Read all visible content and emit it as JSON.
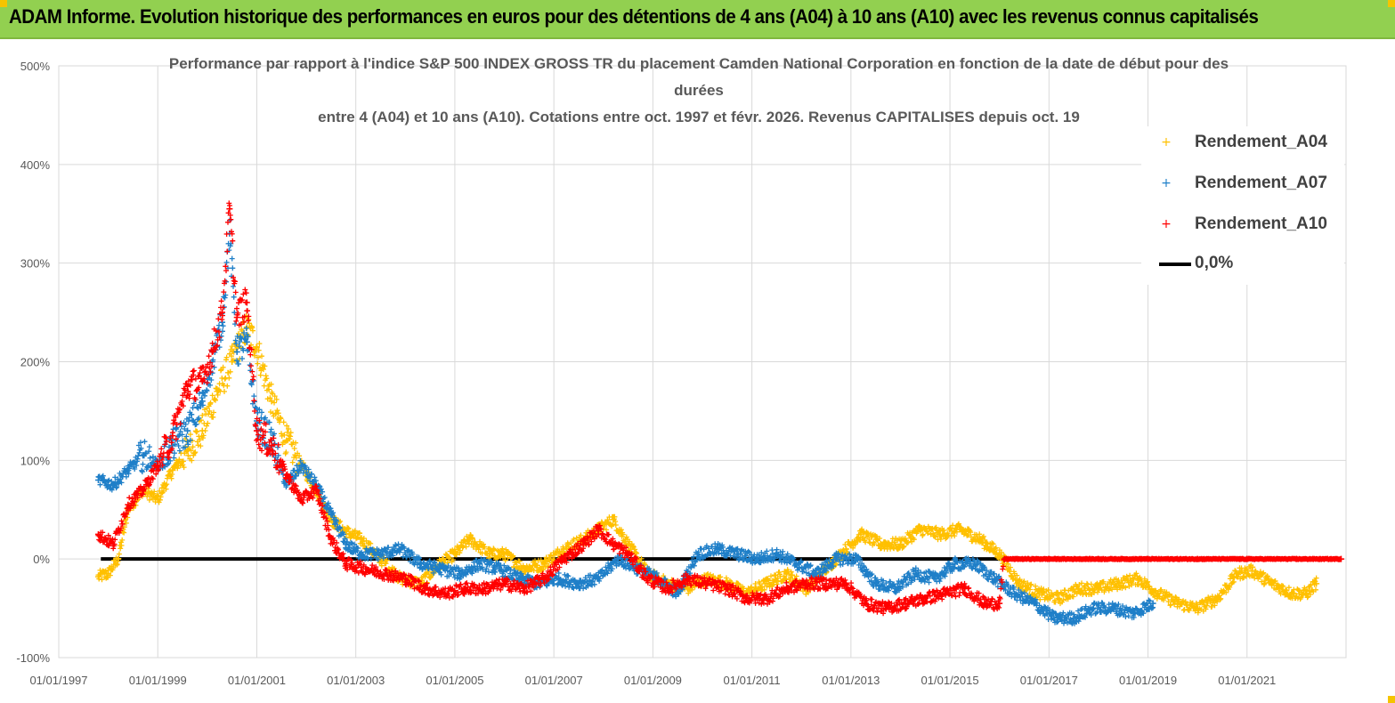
{
  "banner": {
    "title": "ADAM Informe. Evolution historique des performances en euros pour des détentions de 4 ans (A04) à 10 ans (A10) avec les revenus connus capitalisés"
  },
  "colors": {
    "banner": "#92d050",
    "A04": "#ffc000",
    "A07": "#1f7fc8",
    "A10": "#ff0000",
    "zero_line": "#000000",
    "grid": "#d9d9d9"
  },
  "chart_data": {
    "type": "scatter",
    "title_lines": [
      "Performance par rapport à l'indice S&P 500 INDEX GROSS TR  du placement Camden National Corporation en fonction de la date de début pour des",
      "durées",
      "entre 4 (A04) et 10 ans (A10). Cotations entre oct. 1997 et févr. 2026. Revenus CAPITALISES depuis oct. 19"
    ],
    "y_ticks": [
      "500%",
      "400%",
      "300%",
      "200%",
      "100%",
      "0%",
      "-100%"
    ],
    "y_tick_values": [
      500,
      400,
      300,
      200,
      100,
      0,
      -100
    ],
    "ylim": [
      -100,
      500
    ],
    "x_ticks": [
      "01/01/1997",
      "01/01/1999",
      "01/01/2001",
      "01/01/2003",
      "01/01/2005",
      "01/01/2007",
      "01/01/2009",
      "01/01/2011",
      "01/01/2013",
      "01/01/2015",
      "01/01/2017",
      "01/01/2019",
      "01/01/2021"
    ],
    "x_tick_years": [
      1997,
      1999,
      2001,
      2003,
      2005,
      2007,
      2009,
      2011,
      2013,
      2015,
      2017,
      2019,
      2021
    ],
    "xlim": [
      1997,
      2023
    ],
    "legend_position": "top-right",
    "series": [
      {
        "name": "Rendement_A04",
        "points": [
          [
            1997.8,
            -18
          ],
          [
            1998.0,
            -15
          ],
          [
            1998.2,
            0
          ],
          [
            1998.4,
            50
          ],
          [
            1998.7,
            70
          ],
          [
            1999.0,
            60
          ],
          [
            1999.3,
            90
          ],
          [
            1999.6,
            110
          ],
          [
            1999.9,
            130
          ],
          [
            2000.2,
            170
          ],
          [
            2000.5,
            200
          ],
          [
            2000.8,
            235
          ],
          [
            2001.0,
            215
          ],
          [
            2001.3,
            160
          ],
          [
            2001.6,
            120
          ],
          [
            2001.9,
            95
          ],
          [
            2002.2,
            70
          ],
          [
            2002.5,
            40
          ],
          [
            2002.8,
            28
          ],
          [
            2003.1,
            20
          ],
          [
            2003.5,
            0
          ],
          [
            2003.9,
            -20
          ],
          [
            2004.3,
            -25
          ],
          [
            2004.7,
            -5
          ],
          [
            2005.0,
            5
          ],
          [
            2005.3,
            20
          ],
          [
            2005.7,
            5
          ],
          [
            2006.0,
            5
          ],
          [
            2006.4,
            -10
          ],
          [
            2006.8,
            -5
          ],
          [
            2007.2,
            10
          ],
          [
            2007.6,
            20
          ],
          [
            2007.9,
            30
          ],
          [
            2008.2,
            40
          ],
          [
            2008.5,
            15
          ],
          [
            2008.9,
            -15
          ],
          [
            2009.3,
            -25
          ],
          [
            2009.7,
            -30
          ],
          [
            2010.1,
            -20
          ],
          [
            2010.5,
            -25
          ],
          [
            2010.9,
            -35
          ],
          [
            2011.3,
            -25
          ],
          [
            2011.7,
            -15
          ],
          [
            2012.1,
            -30
          ],
          [
            2012.5,
            -10
          ],
          [
            2012.9,
            10
          ],
          [
            2013.2,
            25
          ],
          [
            2013.6,
            15
          ],
          [
            2014.0,
            15
          ],
          [
            2014.4,
            30
          ],
          [
            2014.8,
            25
          ],
          [
            2015.2,
            30
          ],
          [
            2015.6,
            20
          ],
          [
            2016.0,
            5
          ],
          [
            2016.4,
            -25
          ],
          [
            2016.8,
            -35
          ],
          [
            2017.2,
            -40
          ],
          [
            2017.6,
            -30
          ],
          [
            2018.0,
            -30
          ],
          [
            2018.4,
            -25
          ],
          [
            2018.8,
            -20
          ],
          [
            2019.2,
            -35
          ],
          [
            2019.6,
            -45
          ],
          [
            2020.0,
            -50
          ],
          [
            2020.4,
            -40
          ],
          [
            2020.8,
            -15
          ],
          [
            2021.1,
            -12
          ],
          [
            2021.5,
            -25
          ],
          [
            2021.9,
            -35
          ],
          [
            2022.2,
            -35
          ],
          [
            2022.4,
            -25
          ]
        ]
      },
      {
        "name": "Rendement_A07",
        "points": [
          [
            1997.8,
            80
          ],
          [
            1998.1,
            75
          ],
          [
            1998.4,
            90
          ],
          [
            1998.7,
            105
          ],
          [
            1999.0,
            95
          ],
          [
            1999.3,
            115
          ],
          [
            1999.6,
            130
          ],
          [
            1999.9,
            160
          ],
          [
            2000.1,
            200
          ],
          [
            2000.3,
            240
          ],
          [
            2000.45,
            330
          ],
          [
            2000.6,
            210
          ],
          [
            2000.8,
            220
          ],
          [
            2001.0,
            140
          ],
          [
            2001.3,
            120
          ],
          [
            2001.6,
            75
          ],
          [
            2001.9,
            95
          ],
          [
            2002.2,
            75
          ],
          [
            2002.5,
            45
          ],
          [
            2002.8,
            15
          ],
          [
            2003.1,
            5
          ],
          [
            2003.5,
            5
          ],
          [
            2003.9,
            10
          ],
          [
            2004.3,
            -5
          ],
          [
            2004.7,
            -10
          ],
          [
            2005.1,
            -15
          ],
          [
            2005.5,
            -5
          ],
          [
            2005.9,
            -10
          ],
          [
            2006.3,
            -20
          ],
          [
            2006.7,
            -25
          ],
          [
            2007.1,
            -20
          ],
          [
            2007.5,
            -25
          ],
          [
            2007.9,
            -20
          ],
          [
            2008.3,
            0
          ],
          [
            2008.7,
            -10
          ],
          [
            2009.1,
            -20
          ],
          [
            2009.5,
            -35
          ],
          [
            2009.9,
            5
          ],
          [
            2010.3,
            10
          ],
          [
            2010.7,
            5
          ],
          [
            2011.1,
            0
          ],
          [
            2011.5,
            5
          ],
          [
            2011.9,
            -5
          ],
          [
            2012.3,
            -15
          ],
          [
            2012.7,
            0
          ],
          [
            2013.1,
            0
          ],
          [
            2013.5,
            -25
          ],
          [
            2013.9,
            -30
          ],
          [
            2014.3,
            -15
          ],
          [
            2014.7,
            -20
          ],
          [
            2015.1,
            -5
          ],
          [
            2015.5,
            -5
          ],
          [
            2015.9,
            -20
          ],
          [
            2016.3,
            -35
          ],
          [
            2016.7,
            -45
          ],
          [
            2017.1,
            -60
          ],
          [
            2017.5,
            -60
          ],
          [
            2017.9,
            -50
          ],
          [
            2018.3,
            -50
          ],
          [
            2018.7,
            -55
          ],
          [
            2019.1,
            -45
          ]
        ]
      },
      {
        "name": "Rendement_A10",
        "points": [
          [
            1997.8,
            25
          ],
          [
            1998.1,
            15
          ],
          [
            1998.4,
            55
          ],
          [
            1998.7,
            70
          ],
          [
            1999.0,
            95
          ],
          [
            1999.3,
            125
          ],
          [
            1999.6,
            175
          ],
          [
            1999.9,
            180
          ],
          [
            2000.1,
            210
          ],
          [
            2000.3,
            250
          ],
          [
            2000.45,
            355
          ],
          [
            2000.6,
            245
          ],
          [
            2000.8,
            260
          ],
          [
            2001.0,
            130
          ],
          [
            2001.3,
            115
          ],
          [
            2001.6,
            85
          ],
          [
            2001.9,
            60
          ],
          [
            2002.2,
            70
          ],
          [
            2002.5,
            20
          ],
          [
            2002.8,
            -5
          ],
          [
            2003.2,
            -10
          ],
          [
            2003.6,
            -15
          ],
          [
            2004.0,
            -20
          ],
          [
            2004.4,
            -30
          ],
          [
            2004.8,
            -35
          ],
          [
            2005.2,
            -30
          ],
          [
            2005.6,
            -30
          ],
          [
            2006.0,
            -25
          ],
          [
            2006.4,
            -30
          ],
          [
            2006.8,
            -20
          ],
          [
            2007.2,
            0
          ],
          [
            2007.6,
            15
          ],
          [
            2007.9,
            30
          ],
          [
            2008.2,
            15
          ],
          [
            2008.5,
            5
          ],
          [
            2008.9,
            -20
          ],
          [
            2009.3,
            -30
          ],
          [
            2009.7,
            -20
          ],
          [
            2010.1,
            -25
          ],
          [
            2010.5,
            -30
          ],
          [
            2010.9,
            -40
          ],
          [
            2011.3,
            -40
          ],
          [
            2011.7,
            -30
          ],
          [
            2012.1,
            -25
          ],
          [
            2012.5,
            -25
          ],
          [
            2012.9,
            -25
          ],
          [
            2013.3,
            -45
          ],
          [
            2013.7,
            -50
          ],
          [
            2014.1,
            -45
          ],
          [
            2014.5,
            -40
          ],
          [
            2014.9,
            -35
          ],
          [
            2015.3,
            -30
          ],
          [
            2015.7,
            -45
          ],
          [
            2016.0,
            -45
          ],
          [
            2016.1,
            0
          ],
          [
            2017.0,
            0
          ],
          [
            2018.0,
            0
          ],
          [
            2019.0,
            0
          ],
          [
            2020.0,
            0
          ],
          [
            2021.0,
            0
          ],
          [
            2022.0,
            0
          ],
          [
            2022.9,
            0
          ]
        ]
      }
    ],
    "zero_line": {
      "name": "0,0%",
      "value": 0
    }
  }
}
